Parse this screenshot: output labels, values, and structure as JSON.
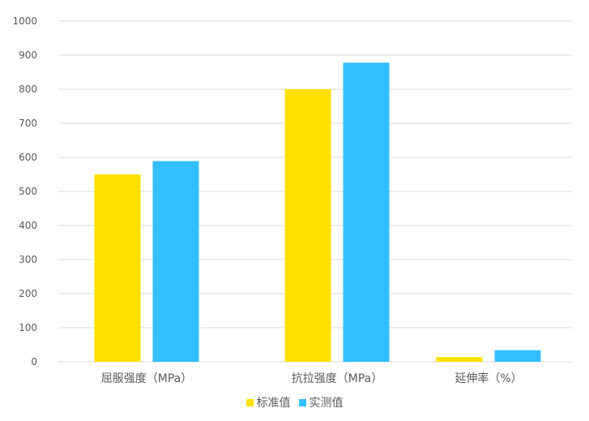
{
  "chart_data": {
    "type": "bar",
    "categories": [
      "屈服强度（MPa）",
      "抗拉强度（MPa）",
      "延伸率（%）"
    ],
    "series": [
      {
        "name": "标准值",
        "values": [
          550,
          800,
          14
        ],
        "color": "#FFE000"
      },
      {
        "name": "实测值",
        "values": [
          589,
          878,
          34
        ],
        "color": "#33BFFF"
      }
    ],
    "ylim": [
      0,
      1000
    ],
    "yticks": [
      0,
      100,
      200,
      300,
      400,
      500,
      600,
      700,
      800,
      900,
      1000
    ],
    "grid": true,
    "legend_position": "bottom-center",
    "gridline_color": "#D9D9D9"
  }
}
